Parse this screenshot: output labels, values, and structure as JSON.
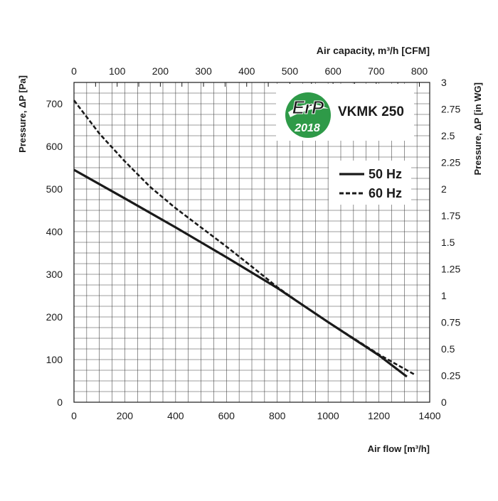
{
  "chart_data": {
    "type": "line",
    "model": "VKMK 250",
    "badge": {
      "top": "ErP",
      "bottom": "2018",
      "color": "#2e9a48"
    },
    "x_axis": {
      "label": "Air flow [m³/h]",
      "range": [
        0,
        1400
      ],
      "ticks": [
        "0",
        "200",
        "400",
        "600",
        "800",
        "1000",
        "1200",
        "1400"
      ]
    },
    "top_axis": {
      "label": "Air capacity, m³/h [CFM]",
      "range": [
        0,
        823.9
      ],
      "ticks": [
        "0",
        "100",
        "200",
        "300",
        "400",
        "500",
        "600",
        "700",
        "800"
      ]
    },
    "y_axis": {
      "label": "Pressure, ΔP [Pa]",
      "range": [
        0,
        750
      ],
      "ticks": [
        "0",
        "100",
        "200",
        "300",
        "400",
        "500",
        "600",
        "700"
      ]
    },
    "right_axis": {
      "label": "Pressure, ΔP [in WG]",
      "range": [
        0,
        3
      ],
      "ticks": [
        "0",
        "0.25",
        "0.5",
        "0.75",
        "1",
        "1.25",
        "1.5",
        "1.75",
        "2",
        "2.25",
        "2.5",
        "2.75",
        "3"
      ]
    },
    "series": [
      {
        "name": "50 Hz",
        "style": "solid",
        "x": [
          0,
          200,
          400,
          600,
          800,
          1000,
          1200,
          1310
        ],
        "y": [
          545,
          478,
          410,
          340,
          268,
          188,
          110,
          60
        ]
      },
      {
        "name": "60 Hz",
        "style": "dashed",
        "x": [
          0,
          100,
          200,
          300,
          400,
          500,
          600,
          700,
          800,
          900,
          1000,
          1100,
          1200,
          1340
        ],
        "y": [
          708,
          630,
          565,
          505,
          455,
          410,
          365,
          318,
          270,
          228,
          188,
          150,
          112,
          65
        ]
      }
    ]
  }
}
